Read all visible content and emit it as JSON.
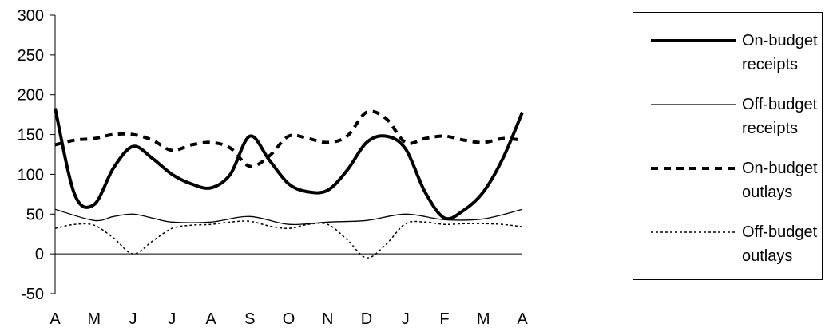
{
  "chart_data": {
    "type": "line",
    "categories": [
      "A",
      "M",
      "J",
      "J",
      "A",
      "S",
      "O",
      "N",
      "D",
      "J",
      "F",
      "M",
      "A"
    ],
    "ylim": [
      -50,
      300
    ],
    "yticks": [
      -50,
      0,
      50,
      100,
      150,
      200,
      250,
      300
    ],
    "ytick_labels": [
      "-50",
      "0",
      "50",
      "100",
      "150",
      "200",
      "250",
      "300"
    ],
    "legend_position": "right",
    "series": [
      {
        "name": "On-budget receipts",
        "style": "thick-solid",
        "x": [
          0,
          0.5,
          1,
          1.5,
          2,
          2.5,
          3,
          3.5,
          4,
          4.5,
          5,
          5.5,
          6,
          6.5,
          7,
          7.5,
          8,
          8.5,
          9,
          9.5,
          10,
          10.5,
          11,
          11.5,
          12
        ],
        "values": [
          183,
          75,
          62,
          108,
          135,
          120,
          100,
          88,
          83,
          100,
          148,
          118,
          88,
          78,
          80,
          105,
          140,
          148,
          132,
          78,
          45,
          55,
          78,
          120,
          178
        ]
      },
      {
        "name": "Off-budget receipts",
        "style": "thin-solid",
        "x": [
          0,
          1,
          1.5,
          2,
          2.5,
          3,
          4,
          5,
          6,
          7,
          8,
          9,
          10,
          11,
          12
        ],
        "values": [
          56,
          42,
          47,
          50,
          45,
          40,
          40,
          47,
          37,
          40,
          42,
          50,
          43,
          44,
          56
        ]
      },
      {
        "name": "On-budget outlays",
        "style": "thick-dashed",
        "x": [
          0,
          0.5,
          1,
          1.5,
          2,
          2.5,
          3,
          3.5,
          4,
          4.5,
          5,
          5.5,
          6,
          6.5,
          7,
          7.5,
          8,
          8.5,
          9,
          9.5,
          10,
          10.5,
          11,
          11.5,
          12
        ],
        "values": [
          137,
          143,
          145,
          150,
          150,
          143,
          130,
          137,
          140,
          133,
          110,
          123,
          148,
          145,
          140,
          148,
          178,
          170,
          140,
          145,
          148,
          143,
          140,
          145,
          143
        ]
      },
      {
        "name": "Off-budget outlays",
        "style": "thin-dotted",
        "x": [
          0,
          0.5,
          1,
          1.5,
          2,
          2.5,
          3,
          3.5,
          4,
          4.5,
          5,
          5.5,
          6,
          6.5,
          7,
          7.5,
          8,
          8.5,
          9,
          9.5,
          10,
          10.5,
          11,
          11.5,
          12
        ],
        "values": [
          32,
          37,
          36,
          20,
          0,
          16,
          32,
          36,
          37,
          40,
          41,
          35,
          32,
          37,
          37,
          18,
          -5,
          12,
          38,
          40,
          37,
          38,
          38,
          37,
          34
        ]
      }
    ]
  }
}
